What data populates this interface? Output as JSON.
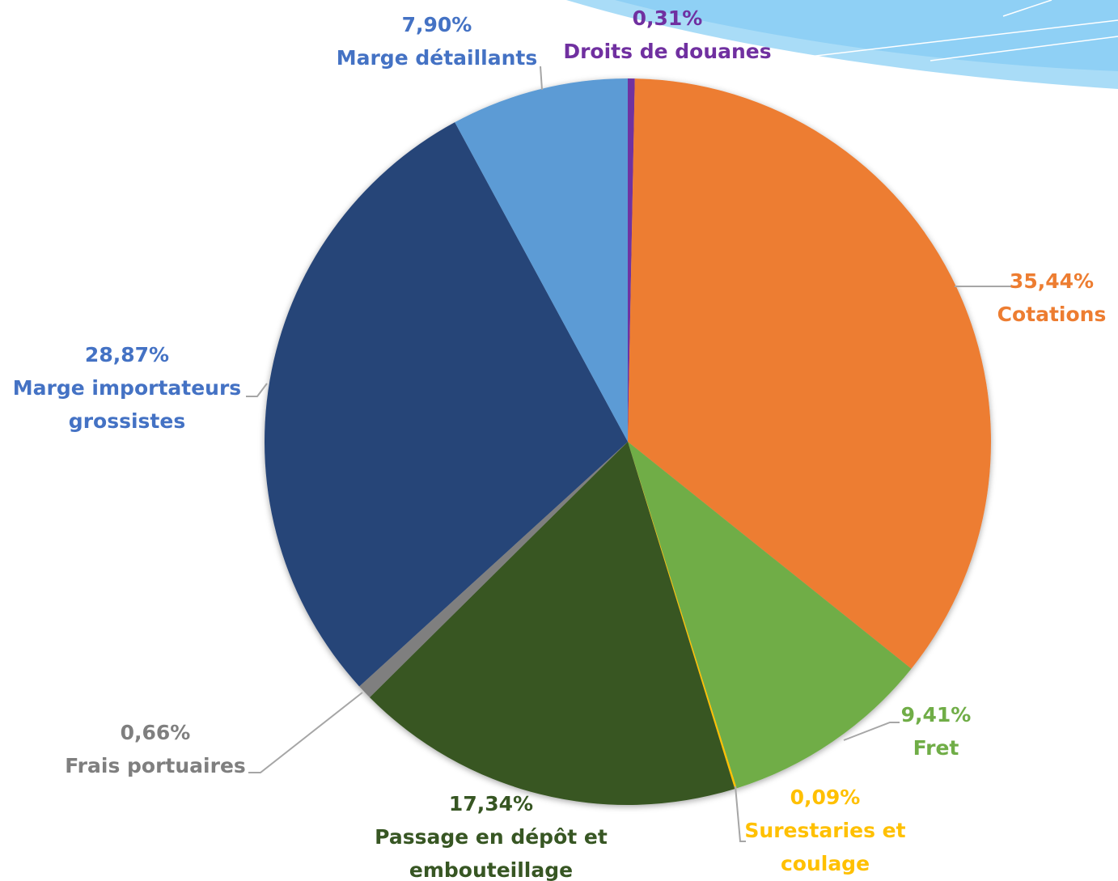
{
  "chart_data": {
    "type": "pie",
    "categories": [
      "Droits de douanes",
      "Cotations",
      "Fret",
      "Surestaries et coulage",
      "Passage en dépôt et embouteillage",
      "Frais portuaires",
      "Marge importateurs grossistes",
      "Marge détaillants"
    ],
    "values": [
      0.31,
      35.44,
      9.41,
      0.09,
      17.34,
      0.66,
      28.87,
      7.9
    ],
    "value_labels": [
      "0,31%",
      "35,44%",
      "9,41%",
      "0,09%",
      "17,34%",
      "0,66%",
      "28,87%",
      "7,90%"
    ],
    "colors": [
      "#7030a0",
      "#ed7d31",
      "#70ad47",
      "#ffc000",
      "#375623",
      "#7f7f7f",
      "#264478",
      "#5b9bd5"
    ]
  }
}
